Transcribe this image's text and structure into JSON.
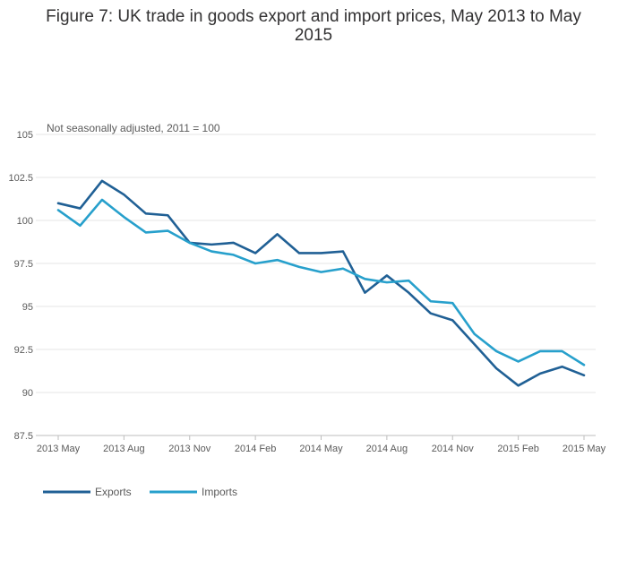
{
  "chart_data": {
    "type": "line",
    "title_line1": "Figure 7: UK trade in goods export and import prices, May 2013 to May",
    "title_line2": "2015",
    "subtitle": "Not seasonally adjusted, 2011 = 100",
    "xlabel": "",
    "ylabel": "",
    "ylim": [
      87.5,
      105
    ],
    "yticks": [
      "87.5",
      "90",
      "92.5",
      "95",
      "97.5",
      "100",
      "102.5",
      "105"
    ],
    "ytick_values": [
      87.5,
      90,
      92.5,
      95,
      97.5,
      100,
      102.5,
      105
    ],
    "xtick_labels": [
      "2013 May",
      "2013 Aug",
      "2013 Nov",
      "2014 Feb",
      "2014 May",
      "2014 Aug",
      "2014 Nov",
      "2015 Feb",
      "2015 May"
    ],
    "xtick_indices": [
      0,
      3,
      6,
      9,
      12,
      15,
      18,
      21,
      24
    ],
    "x": [
      "2013 May",
      "2013 Jun",
      "2013 Jul",
      "2013 Aug",
      "2013 Sep",
      "2013 Oct",
      "2013 Nov",
      "2013 Dec",
      "2014 Jan",
      "2014 Feb",
      "2014 Mar",
      "2014 Apr",
      "2014 May",
      "2014 Jun",
      "2014 Jul",
      "2014 Aug",
      "2014 Sep",
      "2014 Oct",
      "2014 Nov",
      "2014 Dec",
      "2015 Jan",
      "2015 Feb",
      "2015 Mar",
      "2015 Apr",
      "2015 May"
    ],
    "series": [
      {
        "name": "Exports",
        "color": "#206095",
        "values": [
          101.0,
          100.7,
          102.3,
          101.5,
          100.4,
          100.3,
          98.7,
          98.6,
          98.7,
          98.1,
          99.2,
          98.1,
          98.1,
          98.2,
          95.8,
          96.8,
          95.8,
          94.6,
          94.2,
          92.8,
          91.4,
          90.4,
          91.1,
          91.5,
          91.0
        ]
      },
      {
        "name": "Imports",
        "color": "#27a0cc",
        "values": [
          100.6,
          99.7,
          101.2,
          100.2,
          99.3,
          99.4,
          98.7,
          98.2,
          98.0,
          97.5,
          97.7,
          97.3,
          97.0,
          97.2,
          96.6,
          96.4,
          96.5,
          95.3,
          95.2,
          93.4,
          92.4,
          91.8,
          92.4,
          92.4,
          91.6
        ]
      }
    ],
    "grid": true,
    "legend_position": "bottom-left"
  }
}
